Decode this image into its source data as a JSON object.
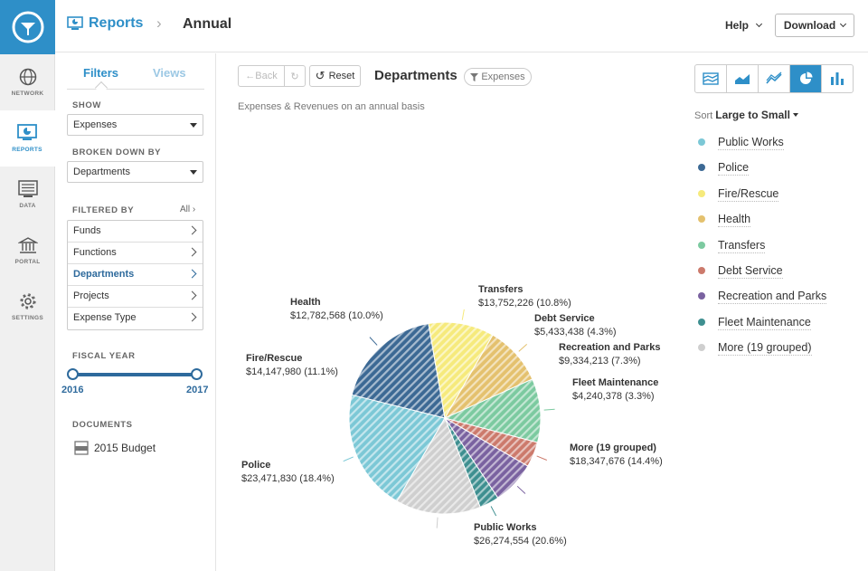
{
  "header": {
    "section": "Reports",
    "page": "Annual",
    "help_label": "Help",
    "download_label": "Download"
  },
  "rail": {
    "items": [
      {
        "label": "NETWORK",
        "icon": "globe-icon"
      },
      {
        "label": "REPORTS",
        "icon": "reports-icon"
      },
      {
        "label": "DATA",
        "icon": "data-icon"
      },
      {
        "label": "PORTAL",
        "icon": "portal-icon"
      },
      {
        "label": "SETTINGS",
        "icon": "gear-icon"
      }
    ]
  },
  "filters": {
    "tabs": [
      "Filters",
      "Views"
    ],
    "show_label": "SHOW",
    "show_value": "Expenses",
    "breakdown_label": "BROKEN DOWN BY",
    "breakdown_value": "Departments",
    "filtered_label": "FILTERED BY",
    "all_label": "All",
    "items": [
      "Funds",
      "Functions",
      "Departments",
      "Projects",
      "Expense Type"
    ],
    "fiscal_label": "FISCAL YEAR",
    "year_start": "2016",
    "year_end": "2017",
    "documents_label": "DOCUMENTS",
    "document": "2015 Budget"
  },
  "toolbar": {
    "back_label": "Back",
    "reset_label": "Reset",
    "title": "Departments",
    "pill_label": "Expenses",
    "subtitle": "Expenses & Revenues on an annual basis"
  },
  "sort": {
    "label": "Sort",
    "value": "Large to Small"
  },
  "colors": {
    "accent": "#2e8fc8",
    "dark_accent": "#2e6a9c"
  },
  "chart_data": {
    "type": "pie",
    "slices": [
      {
        "name": "Public Works",
        "value": 26274554,
        "value_label": "$26,274,554",
        "pct": 20.6,
        "pct_label": "(20.6%)",
        "color": "#7cc8d6"
      },
      {
        "name": "Police",
        "value": 23471830,
        "value_label": "$23,471,830",
        "pct": 18.4,
        "pct_label": "(18.4%)",
        "color": "#3c6994"
      },
      {
        "name": "Fire/Rescue",
        "value": 14147980,
        "value_label": "$14,147,980",
        "pct": 11.1,
        "pct_label": "(11.1%)",
        "color": "#f6ea7c"
      },
      {
        "name": "Health",
        "value": 12782568,
        "value_label": "$12,782,568",
        "pct": 10.0,
        "pct_label": "(10.0%)",
        "color": "#e4c16e"
      },
      {
        "name": "Transfers",
        "value": 13752226,
        "value_label": "$13,752,226",
        "pct": 10.8,
        "pct_label": "(10.8%)",
        "color": "#7ccaa0"
      },
      {
        "name": "Debt Service",
        "value": 5433438,
        "value_label": "$5,433,438",
        "pct": 4.3,
        "pct_label": "(4.3%)",
        "color": "#cc7a6c"
      },
      {
        "name": "Recreation and Parks",
        "value": 9334213,
        "value_label": "$9,334,213",
        "pct": 7.3,
        "pct_label": "(7.3%)",
        "color": "#7a62a0"
      },
      {
        "name": "Fleet Maintenance",
        "value": 4240378,
        "value_label": "$4,240,378",
        "pct": 3.3,
        "pct_label": "(3.3%)",
        "color": "#3e8f90"
      },
      {
        "name": "More (19 grouped)",
        "value": 18347676,
        "value_label": "$18,347,676",
        "pct": 14.4,
        "pct_label": "(14.4%)",
        "color": "#cfcfcf"
      }
    ],
    "legend_order": [
      "Public Works",
      "Police",
      "Fire/Rescue",
      "Health",
      "Transfers",
      "Debt Service",
      "Recreation and Parks",
      "Fleet Maintenance",
      "More (19 grouped)"
    ],
    "legend_placement": "right"
  }
}
